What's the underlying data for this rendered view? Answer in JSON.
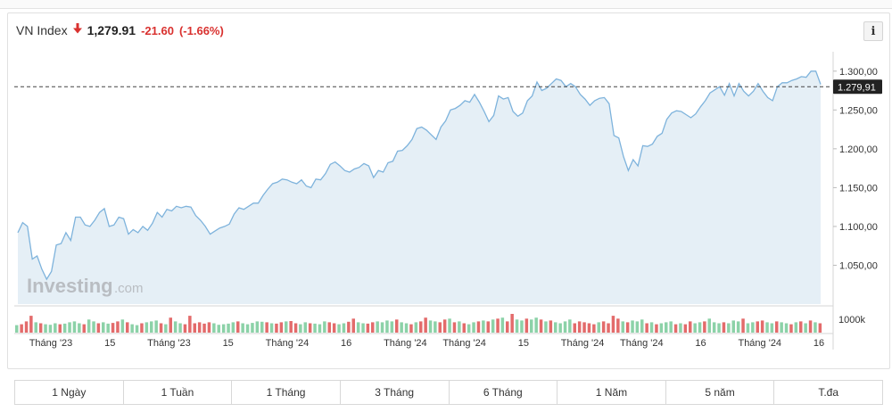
{
  "header": {
    "name": "VN Index",
    "price": "1,279.91",
    "change": "-21.60",
    "change_pct": "(-1.66%)",
    "direction_icon": "arrow-down-icon",
    "down_color": "#d9312f",
    "info_label": "i"
  },
  "watermark": {
    "brand": "Investing",
    "suffix": ".com"
  },
  "range_buttons": [
    "1 Ngày",
    "1 Tuần",
    "1 Tháng",
    "3 Tháng",
    "6 Tháng",
    "1 Năm",
    "5 năm",
    "T.đa"
  ],
  "chart_data": {
    "type": "area",
    "ylim": [
      1000,
      1325
    ],
    "y_ticks": [
      "1.050,00",
      "1.100,00",
      "1.150,00",
      "1.200,00",
      "1.250,00",
      "1.300,00"
    ],
    "last_price_label": "1.279,91",
    "last_price": 1279.91,
    "volume_label": "1000k",
    "x_tick_labels": [
      "Tháng '23",
      "15",
      "Tháng '23",
      "15",
      "Tháng '24",
      "16",
      "Tháng '24",
      "Tháng '24",
      "15",
      "Tháng '24",
      "Tháng '24",
      "16",
      "Tháng '24",
      "16"
    ],
    "colors": {
      "line": "#7eb3dc",
      "fill": "#e5eff6",
      "up_volume": "#8cd2a8",
      "down_volume": "#e36b6b",
      "ref_line": "#444444"
    },
    "series": [
      {
        "values": [
          1092,
          1105,
          1100,
          1058,
          1062,
          1045,
          1032,
          1042,
          1076,
          1078,
          1092,
          1082,
          1112,
          1112,
          1102,
          1100,
          1108,
          1118,
          1123,
          1100,
          1102,
          1112,
          1110,
          1090,
          1096,
          1092,
          1100,
          1095,
          1104,
          1118,
          1112,
          1122,
          1120,
          1126,
          1124,
          1126,
          1125,
          1114,
          1108,
          1100,
          1090,
          1094,
          1098,
          1100,
          1103,
          1116,
          1124,
          1122,
          1126,
          1130,
          1130,
          1140,
          1148,
          1155,
          1157,
          1161,
          1160,
          1157,
          1155,
          1160,
          1152,
          1150,
          1161,
          1160,
          1168,
          1180,
          1183,
          1178,
          1172,
          1170,
          1174,
          1176,
          1181,
          1178,
          1163,
          1172,
          1170,
          1182,
          1184,
          1197,
          1198,
          1204,
          1212,
          1226,
          1228,
          1224,
          1218,
          1212,
          1228,
          1236,
          1250,
          1252,
          1256,
          1262,
          1260,
          1270,
          1260,
          1248,
          1235,
          1243,
          1268,
          1264,
          1266,
          1248,
          1242,
          1246,
          1262,
          1268,
          1286,
          1275,
          1278,
          1284,
          1290,
          1288,
          1280,
          1284,
          1280,
          1270,
          1264,
          1256,
          1262,
          1265,
          1266,
          1258,
          1217,
          1214,
          1190,
          1172,
          1186,
          1178,
          1204,
          1203,
          1206,
          1216,
          1220,
          1238,
          1246,
          1249,
          1248,
          1244,
          1240,
          1245,
          1254,
          1262,
          1272,
          1276,
          1280,
          1269,
          1284,
          1268,
          1284,
          1274,
          1268,
          1274,
          1284,
          1274,
          1266,
          1262,
          1280,
          1285,
          1285,
          1288,
          1290,
          1293,
          1292,
          1300,
          1300,
          1283
        ]
      }
    ],
    "volumes": [
      [
        0.4,
        1
      ],
      [
        0.45,
        0
      ],
      [
        0.6,
        0
      ],
      [
        0.9,
        0
      ],
      [
        0.55,
        1
      ],
      [
        0.5,
        0
      ],
      [
        0.45,
        1
      ],
      [
        0.42,
        1
      ],
      [
        0.5,
        1
      ],
      [
        0.45,
        0
      ],
      [
        0.48,
        1
      ],
      [
        0.55,
        1
      ],
      [
        0.6,
        1
      ],
      [
        0.5,
        1
      ],
      [
        0.45,
        0
      ],
      [
        0.7,
        1
      ],
      [
        0.6,
        1
      ],
      [
        0.5,
        0
      ],
      [
        0.55,
        1
      ],
      [
        0.48,
        1
      ],
      [
        0.52,
        0
      ],
      [
        0.6,
        0
      ],
      [
        0.7,
        1
      ],
      [
        0.55,
        0
      ],
      [
        0.45,
        1
      ],
      [
        0.4,
        1
      ],
      [
        0.5,
        0
      ],
      [
        0.55,
        1
      ],
      [
        0.6,
        1
      ],
      [
        0.65,
        1
      ],
      [
        0.5,
        0
      ],
      [
        0.45,
        1
      ],
      [
        0.8,
        0
      ],
      [
        0.6,
        1
      ],
      [
        0.5,
        1
      ],
      [
        0.45,
        0
      ],
      [
        0.9,
        0
      ],
      [
        0.5,
        0
      ],
      [
        0.55,
        0
      ],
      [
        0.48,
        0
      ],
      [
        0.55,
        0
      ],
      [
        0.5,
        1
      ],
      [
        0.42,
        1
      ],
      [
        0.45,
        1
      ],
      [
        0.48,
        1
      ],
      [
        0.55,
        1
      ],
      [
        0.6,
        0
      ],
      [
        0.5,
        1
      ],
      [
        0.45,
        1
      ],
      [
        0.52,
        1
      ],
      [
        0.6,
        1
      ],
      [
        0.58,
        1
      ],
      [
        0.55,
        0
      ],
      [
        0.5,
        1
      ],
      [
        0.48,
        0
      ],
      [
        0.55,
        0
      ],
      [
        0.6,
        1
      ],
      [
        0.62,
        0
      ],
      [
        0.5,
        0
      ],
      [
        0.45,
        1
      ],
      [
        0.55,
        1
      ],
      [
        0.5,
        0
      ],
      [
        0.48,
        1
      ],
      [
        0.45,
        1
      ],
      [
        0.6,
        1
      ],
      [
        0.55,
        0
      ],
      [
        0.5,
        0
      ],
      [
        0.45,
        1
      ],
      [
        0.5,
        1
      ],
      [
        0.58,
        0
      ],
      [
        0.75,
        0
      ],
      [
        0.55,
        1
      ],
      [
        0.5,
        1
      ],
      [
        0.48,
        0
      ],
      [
        0.55,
        0
      ],
      [
        0.6,
        1
      ],
      [
        0.55,
        1
      ],
      [
        0.65,
        1
      ],
      [
        0.6,
        1
      ],
      [
        0.7,
        0
      ],
      [
        0.55,
        1
      ],
      [
        0.5,
        1
      ],
      [
        0.45,
        0
      ],
      [
        0.55,
        1
      ],
      [
        0.6,
        0
      ],
      [
        0.8,
        0
      ],
      [
        0.65,
        1
      ],
      [
        0.6,
        1
      ],
      [
        0.55,
        0
      ],
      [
        0.7,
        0
      ],
      [
        0.75,
        1
      ],
      [
        0.55,
        0
      ],
      [
        0.6,
        1
      ],
      [
        0.5,
        0
      ],
      [
        0.45,
        1
      ],
      [
        0.55,
        1
      ],
      [
        0.6,
        0
      ],
      [
        0.65,
        1
      ],
      [
        0.6,
        0
      ],
      [
        0.7,
        1
      ],
      [
        0.75,
        0
      ],
      [
        0.8,
        1
      ],
      [
        0.6,
        0
      ],
      [
        1.0,
        0
      ],
      [
        0.7,
        1
      ],
      [
        0.65,
        1
      ],
      [
        0.75,
        0
      ],
      [
        0.7,
        1
      ],
      [
        0.8,
        1
      ],
      [
        0.7,
        0
      ],
      [
        0.6,
        1
      ],
      [
        0.65,
        0
      ],
      [
        0.55,
        1
      ],
      [
        0.5,
        1
      ],
      [
        0.6,
        1
      ],
      [
        0.7,
        1
      ],
      [
        0.5,
        0
      ],
      [
        0.6,
        0
      ],
      [
        0.55,
        0
      ],
      [
        0.5,
        0
      ],
      [
        0.45,
        0
      ],
      [
        0.55,
        1
      ],
      [
        0.6,
        0
      ],
      [
        0.5,
        0
      ],
      [
        0.9,
        0
      ],
      [
        0.75,
        0
      ],
      [
        0.6,
        1
      ],
      [
        0.55,
        0
      ],
      [
        0.65,
        1
      ],
      [
        0.6,
        1
      ],
      [
        0.7,
        1
      ],
      [
        0.5,
        0
      ],
      [
        0.55,
        1
      ],
      [
        0.45,
        0
      ],
      [
        0.5,
        1
      ],
      [
        0.55,
        1
      ],
      [
        0.6,
        1
      ],
      [
        0.45,
        0
      ],
      [
        0.5,
        1
      ],
      [
        0.45,
        0
      ],
      [
        0.6,
        0
      ],
      [
        0.5,
        1
      ],
      [
        0.55,
        1
      ],
      [
        0.6,
        0
      ],
      [
        0.75,
        1
      ],
      [
        0.55,
        1
      ],
      [
        0.5,
        1
      ],
      [
        0.55,
        0
      ],
      [
        0.5,
        1
      ],
      [
        0.65,
        1
      ],
      [
        0.6,
        1
      ],
      [
        0.75,
        0
      ],
      [
        0.5,
        1
      ],
      [
        0.55,
        1
      ],
      [
        0.6,
        0
      ],
      [
        0.65,
        0
      ],
      [
        0.55,
        1
      ],
      [
        0.5,
        1
      ],
      [
        0.6,
        0
      ],
      [
        0.55,
        1
      ],
      [
        0.5,
        1
      ],
      [
        0.45,
        0
      ],
      [
        0.55,
        1
      ],
      [
        0.6,
        0
      ],
      [
        0.5,
        1
      ],
      [
        0.65,
        0
      ],
      [
        0.55,
        1
      ],
      [
        0.5,
        0
      ]
    ]
  }
}
